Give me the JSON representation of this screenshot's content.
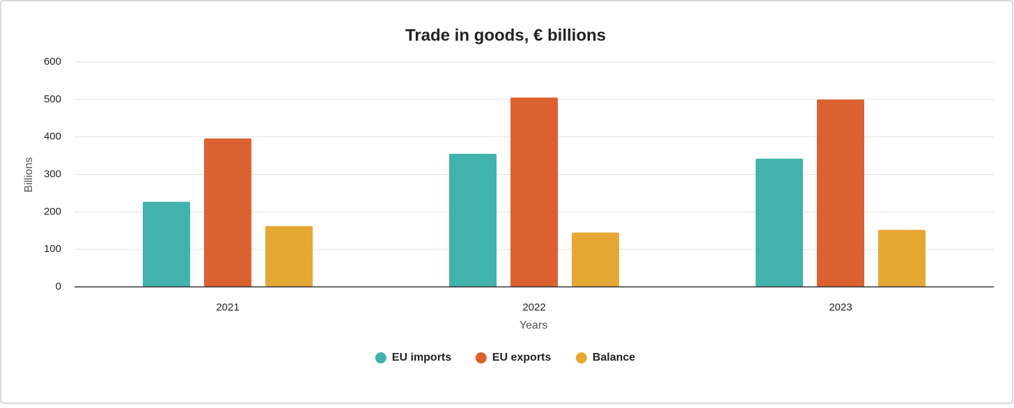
{
  "chart_data": {
    "type": "bar",
    "title": "Trade in goods, € billions",
    "x_label": "Years",
    "y_label": "Billions",
    "categories": [
      "2021",
      "2022",
      "2023"
    ],
    "series": [
      {
        "name": "EU imports",
        "color": "#41b3ac",
        "values": [
          227,
          355,
          342
        ]
      },
      {
        "name": "EU exports",
        "color": "#db6230",
        "values": [
          396,
          505,
          500
        ]
      },
      {
        "name": "Balance",
        "color": "#e6a835",
        "values": [
          162,
          145,
          152
        ]
      }
    ],
    "ylim": [
      0,
      600
    ],
    "yticks": [
      0,
      100,
      200,
      300,
      400,
      500,
      600
    ],
    "grid": true,
    "legend": "bottom"
  }
}
